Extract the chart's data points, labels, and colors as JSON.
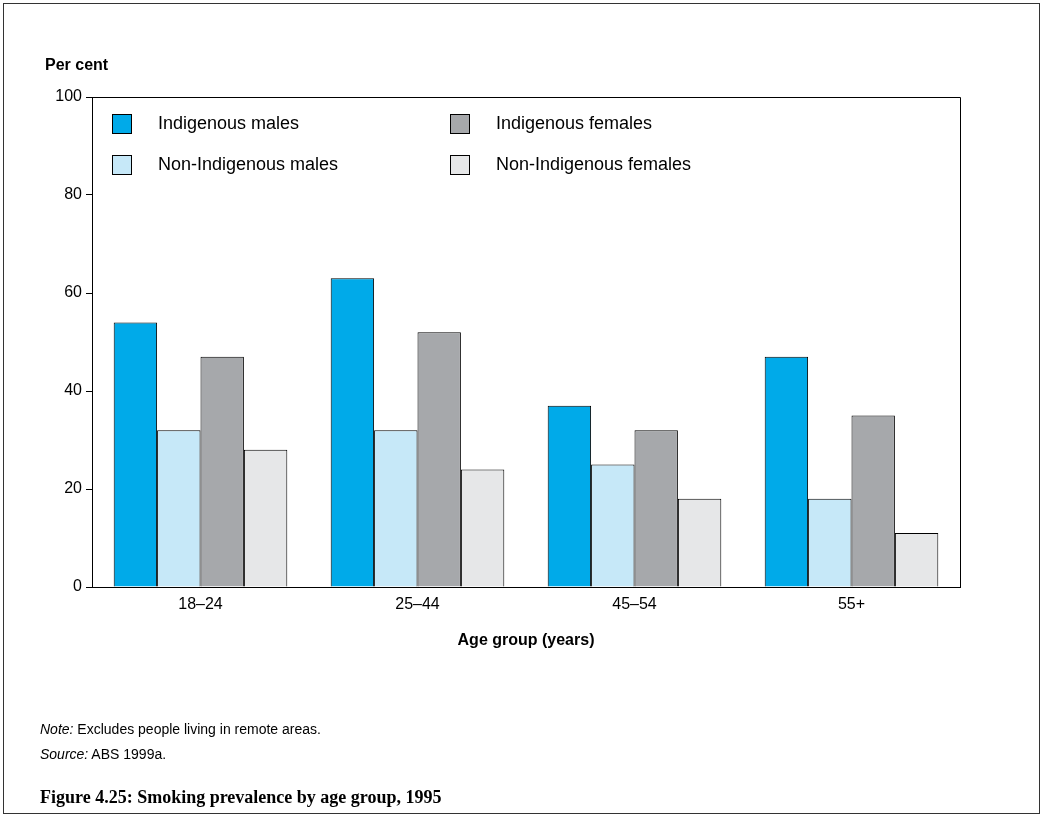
{
  "chart_data": {
    "type": "bar",
    "title": "Figure 4.25: Smoking prevalence by age group, 1995",
    "xlabel": "Age group (years)",
    "ylabel": "Per cent",
    "categories": [
      "18–24",
      "25–44",
      "45–54",
      "55+"
    ],
    "series": [
      {
        "name": "Indigenous males",
        "color": "#00aae9",
        "values": [
          54,
          63,
          37,
          47
        ]
      },
      {
        "name": "Non-Indigenous males",
        "color": "#c6e8f8",
        "values": [
          32,
          32,
          25,
          18
        ]
      },
      {
        "name": "Indigenous females",
        "color": "#a6a8ab",
        "values": [
          47,
          52,
          32,
          35
        ]
      },
      {
        "name": "Non-Indigenous females",
        "color": "#e6e7e8",
        "values": [
          28,
          24,
          18,
          11
        ]
      }
    ],
    "ylim": [
      0,
      100
    ],
    "yticks": [
      0,
      20,
      40,
      60,
      80,
      100
    ],
    "grid": false,
    "legend": "top left",
    "annotations": [
      "Note: Excludes people living in remote areas.",
      "Source: ABS 1999a."
    ]
  }
}
